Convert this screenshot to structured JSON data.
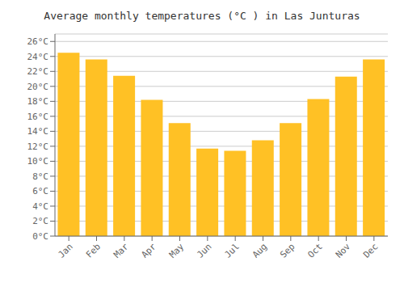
{
  "chart_data": {
    "type": "bar",
    "title": "Average monthly temperatures (°C ) in Las Junturas",
    "categories": [
      "Jan",
      "Feb",
      "Mar",
      "Apr",
      "May",
      "Jun",
      "Jul",
      "Aug",
      "Sep",
      "Oct",
      "Nov",
      "Dec"
    ],
    "values": [
      24.5,
      23.6,
      21.4,
      18.2,
      15.1,
      11.7,
      11.4,
      12.8,
      15.1,
      18.3,
      21.3,
      23.6
    ],
    "color": "#FFC125",
    "ylim": [
      0,
      27
    ],
    "yticks": [
      {
        "value": 0,
        "label": "0°C"
      },
      {
        "value": 2,
        "label": "2°C"
      },
      {
        "value": 4,
        "label": "4°C"
      },
      {
        "value": 6,
        "label": "6°C"
      },
      {
        "value": 8,
        "label": "8°C"
      },
      {
        "value": 10,
        "label": "10°C"
      },
      {
        "value": 12,
        "label": "12°C"
      },
      {
        "value": 14,
        "label": "14°C"
      },
      {
        "value": 16,
        "label": "16°C"
      },
      {
        "value": 18,
        "label": "18°C"
      },
      {
        "value": 20,
        "label": "20°C"
      },
      {
        "value": 22,
        "label": "22°C"
      },
      {
        "value": 24,
        "label": "24°C"
      },
      {
        "value": 26,
        "label": "26°C"
      }
    ],
    "grid": true
  }
}
